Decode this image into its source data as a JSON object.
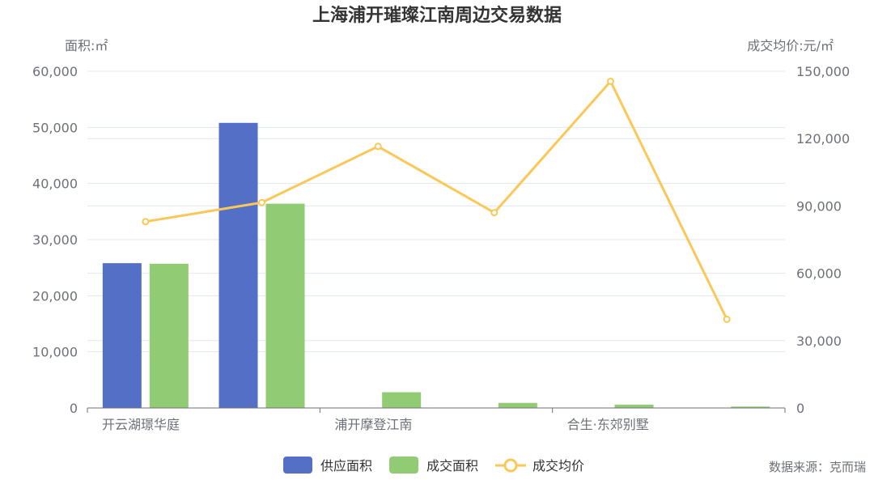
{
  "chart_data": {
    "type": "bar",
    "title": "上海浦开璀璨江南周边交易数据",
    "left_axis_unit": "面积:㎡",
    "right_axis_unit": "成交均价:元/㎡",
    "x_tick_labels": [
      "开云湖璟华庭",
      "浦开摩登江南",
      "合生·东郊别墅"
    ],
    "y_left_ticks": [
      "0",
      "10,000",
      "20,000",
      "30,000",
      "40,000",
      "50,000",
      "60,000"
    ],
    "y_right_ticks": [
      "0",
      "30,000",
      "60,000",
      "90,000",
      "120,000",
      "150,000"
    ],
    "ylim_left": [
      0,
      60000
    ],
    "ylim_right": [
      0,
      150000
    ],
    "grid": true,
    "legend_position": "bottom",
    "n_categories": 6,
    "series": [
      {
        "name": "供应面积",
        "kind": "bar",
        "axis": "left",
        "color": "#5470c6",
        "values": [
          25800,
          50800,
          0,
          0,
          0,
          0
        ]
      },
      {
        "name": "成交面积",
        "kind": "bar",
        "axis": "left",
        "color": "#91cc75",
        "values": [
          25700,
          36400,
          2800,
          900,
          600,
          250
        ]
      },
      {
        "name": "成交均价",
        "kind": "line",
        "axis": "right",
        "color": "#fac858",
        "values": [
          83000,
          91500,
          116500,
          87000,
          145500,
          39500
        ]
      }
    ],
    "source": "数据来源：克而瑞"
  }
}
